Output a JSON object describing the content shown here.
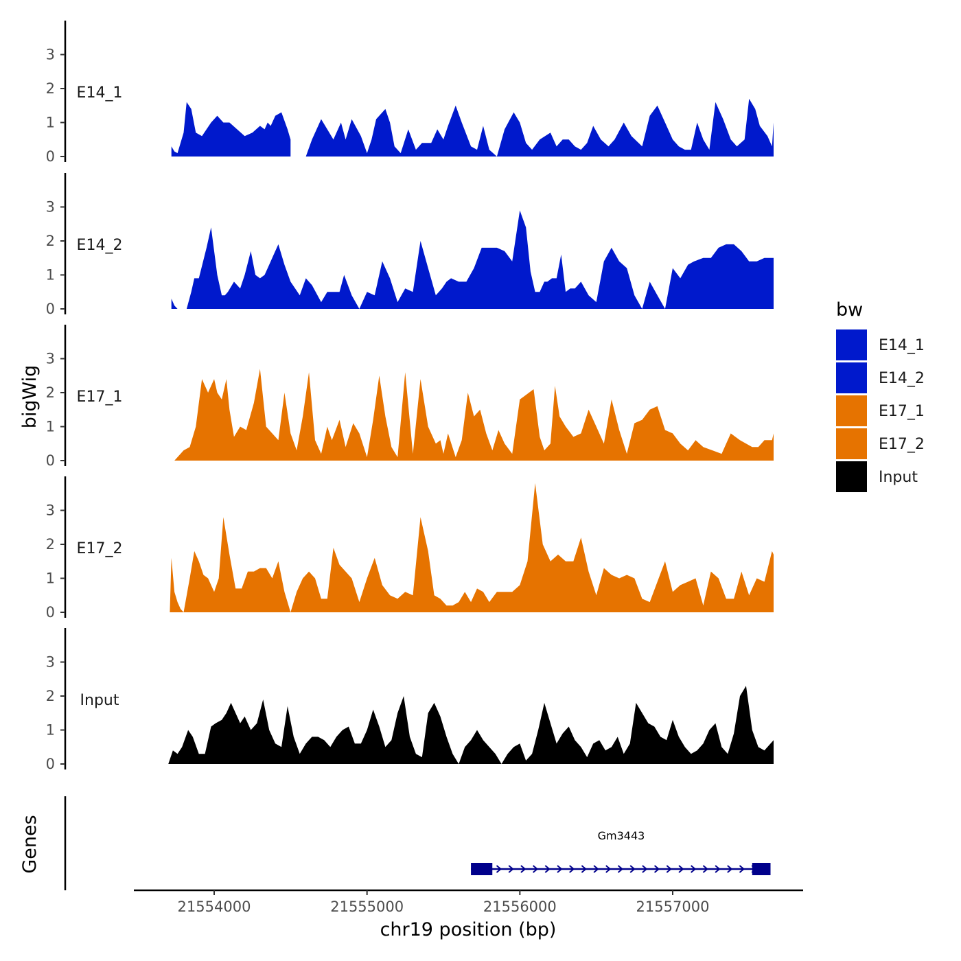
{
  "chart_data": {
    "type": "area",
    "ylabel": "bigWig",
    "xlabel": "chr19 position (bp)",
    "genes_label": "Genes",
    "y_ticks": [
      "0",
      "1",
      "2",
      "3"
    ],
    "ylim": [
      0,
      4
    ],
    "xlim": [
      21553500,
      21557900
    ],
    "x_tick_values": [
      21554000,
      21555000,
      21556000,
      21557000
    ],
    "x_tick_labels": [
      "21554000",
      "21555000",
      "21556000",
      "21557000"
    ],
    "legend": {
      "title": "bw",
      "entries": [
        {
          "label": "E14_1",
          "color": "#0019CC"
        },
        {
          "label": "E14_2",
          "color": "#0019CC"
        },
        {
          "label": "E17_1",
          "color": "#E67300"
        },
        {
          "label": "E17_2",
          "color": "#E67300"
        },
        {
          "label": "Input",
          "color": "#000000"
        }
      ]
    },
    "series": [
      {
        "name": "E14_1",
        "color": "#0019CC",
        "x": [
          21553720,
          21553740,
          21553760,
          21553800,
          21553820,
          21553850,
          21553880,
          21553920,
          21553980,
          21554020,
          21554060,
          21554100,
          21554150,
          21554200,
          21554250,
          21554300,
          21554330,
          21554350,
          21554370,
          21554400,
          21554440,
          21554480,
          21554500,
          21554530,
          21554560,
          21554600,
          21554640,
          21554700,
          21554740,
          21554780,
          21554830,
          21554860,
          21554900,
          21554960,
          21555000,
          21555030,
          21555060,
          21555120,
          21555150,
          21555180,
          21555220,
          21555270,
          21555320,
          21555360,
          21555420,
          21555460,
          21555500,
          21555530,
          21555580,
          21555620,
          21555680,
          21555720,
          21555760,
          21555800,
          21555850,
          21555900,
          21555960,
          21556000,
          21556040,
          21556080,
          21556130,
          21556200,
          21556240,
          21556280,
          21556320,
          21556360,
          21556400,
          21556440,
          21556480,
          21556530,
          21556580,
          21556620,
          21556680,
          21556730,
          21556800,
          21556850,
          21556900,
          21556950,
          21557000,
          21557040,
          21557080,
          21557120,
          21557160,
          21557200,
          21557240,
          21557280,
          21557330,
          21557380,
          21557420,
          21557470,
          21557500,
          21557540,
          21557570,
          21557620,
          21557650,
          21557660
        ],
        "y": [
          0.3,
          0.15,
          0.1,
          0.7,
          1.6,
          1.4,
          0.7,
          0.6,
          1.0,
          1.2,
          1.0,
          1.0,
          0.8,
          0.6,
          0.7,
          0.9,
          0.8,
          1.0,
          0.9,
          1.2,
          1.3,
          0.8,
          0.5,
          0.0,
          0.0,
          0.0,
          0.5,
          1.1,
          0.8,
          0.5,
          1.0,
          0.5,
          1.1,
          0.6,
          0.1,
          0.5,
          1.1,
          1.4,
          1.0,
          0.3,
          0.1,
          0.8,
          0.2,
          0.4,
          0.4,
          0.8,
          0.5,
          0.9,
          1.5,
          1.0,
          0.3,
          0.2,
          0.9,
          0.2,
          0.0,
          0.8,
          1.3,
          1.0,
          0.4,
          0.2,
          0.5,
          0.7,
          0.3,
          0.5,
          0.5,
          0.3,
          0.2,
          0.4,
          0.9,
          0.5,
          0.3,
          0.5,
          1.0,
          0.6,
          0.3,
          1.2,
          1.5,
          1.0,
          0.5,
          0.3,
          0.2,
          0.2,
          1.0,
          0.5,
          0.2,
          1.6,
          1.1,
          0.5,
          0.3,
          0.5,
          1.7,
          1.4,
          0.9,
          0.6,
          0.3,
          1.0
        ],
        "gap": [
          21554500,
          21554560
        ]
      },
      {
        "name": "E14_2",
        "color": "#0019CC",
        "x": [
          21553720,
          21553740,
          21553760,
          21553780,
          21553820,
          21553850,
          21553870,
          21553900,
          21553950,
          21553980,
          21554020,
          21554050,
          21554070,
          21554090,
          21554130,
          21554170,
          21554200,
          21554240,
          21554270,
          21554300,
          21554330,
          21554360,
          21554390,
          21554420,
          21554460,
          21554500,
          21554530,
          21554560,
          21554600,
          21554640,
          21554700,
          21554740,
          21554780,
          21554820,
          21554850,
          21554900,
          21554950,
          21555000,
          21555050,
          21555100,
          21555150,
          21555200,
          21555250,
          21555300,
          21555350,
          21555400,
          21555450,
          21555490,
          21555520,
          21555550,
          21555600,
          21555650,
          21555700,
          21555750,
          21555800,
          21555850,
          21555900,
          21555950,
          21556000,
          21556040,
          21556070,
          21556100,
          21556130,
          21556160,
          21556180,
          21556210,
          21556240,
          21556270,
          21556300,
          21556330,
          21556360,
          21556400,
          21556450,
          21556500,
          21556550,
          21556600,
          21556650,
          21556700,
          21556750,
          21556800,
          21556850,
          21556900,
          21556950,
          21557000,
          21557050,
          21557100,
          21557140,
          21557200,
          21557250,
          21557300,
          21557350,
          21557400,
          21557450,
          21557500,
          21557550,
          21557600,
          21557650,
          21557660
        ],
        "y": [
          0.3,
          0.1,
          0.0,
          0.0,
          0.0,
          0.5,
          0.9,
          0.9,
          1.8,
          2.4,
          1.0,
          0.4,
          0.4,
          0.5,
          0.8,
          0.6,
          1.0,
          1.7,
          1.0,
          0.9,
          1.0,
          1.3,
          1.6,
          1.9,
          1.3,
          0.8,
          0.6,
          0.4,
          0.9,
          0.7,
          0.2,
          0.5,
          0.5,
          0.5,
          1.0,
          0.4,
          0.0,
          0.5,
          0.4,
          1.4,
          0.9,
          0.2,
          0.6,
          0.5,
          2.0,
          1.2,
          0.4,
          0.6,
          0.8,
          0.9,
          0.8,
          0.8,
          1.2,
          1.8,
          1.8,
          1.8,
          1.7,
          1.4,
          2.9,
          2.4,
          1.1,
          0.5,
          0.5,
          0.8,
          0.8,
          0.9,
          0.9,
          1.6,
          0.5,
          0.6,
          0.6,
          0.8,
          0.4,
          0.2,
          1.4,
          1.8,
          1.4,
          1.2,
          0.4,
          0.0,
          0.8,
          0.4,
          0.0,
          1.2,
          0.9,
          1.3,
          1.4,
          1.5,
          1.5,
          1.8,
          1.9,
          1.9,
          1.7,
          1.4,
          1.4,
          1.5,
          1.5,
          1.5
        ]
      },
      {
        "name": "E17_1",
        "color": "#E67300",
        "x": [
          21553720,
          21553740,
          21553760,
          21553800,
          21553840,
          21553880,
          21553920,
          21553960,
          21554000,
          21554020,
          21554050,
          21554080,
          21554100,
          21554130,
          21554170,
          21554210,
          21554260,
          21554300,
          21554340,
          21554380,
          21554420,
          21554460,
          21554500,
          21554540,
          21554580,
          21554620,
          21554660,
          21554700,
          21554740,
          21554770,
          21554820,
          21554860,
          21554910,
          21554950,
          21555000,
          21555040,
          21555080,
          21555120,
          21555160,
          21555200,
          21555250,
          21555300,
          21555350,
          21555400,
          21555450,
          21555480,
          21555500,
          21555530,
          21555580,
          21555620,
          21555660,
          21555700,
          21555740,
          21555780,
          21555820,
          21555860,
          21555900,
          21555950,
          21556000,
          21556030,
          21556060,
          21556090,
          21556130,
          21556160,
          21556200,
          21556230,
          21556260,
          21556300,
          21556350,
          21556400,
          21556450,
          21556500,
          21556550,
          21556600,
          21556650,
          21556700,
          21556750,
          21556800,
          21556850,
          21556900,
          21556950,
          21557000,
          21557050,
          21557100,
          21557150,
          21557200,
          21557260,
          21557320,
          21557380,
          21557440,
          21557480,
          21557520,
          21557560,
          21557600,
          21557650,
          21557660
        ],
        "y": [
          0.0,
          0.0,
          0.1,
          0.3,
          0.4,
          1.0,
          2.4,
          2.0,
          2.4,
          2.0,
          1.8,
          2.4,
          1.5,
          0.7,
          1.0,
          0.9,
          1.7,
          2.7,
          1.0,
          0.8,
          0.6,
          2.0,
          0.8,
          0.3,
          1.3,
          2.6,
          0.6,
          0.2,
          1.0,
          0.6,
          1.2,
          0.4,
          1.1,
          0.8,
          0.1,
          1.2,
          2.5,
          1.3,
          0.4,
          0.1,
          2.6,
          0.2,
          2.4,
          1.0,
          0.5,
          0.6,
          0.2,
          0.8,
          0.1,
          0.6,
          2.0,
          1.3,
          1.5,
          0.8,
          0.3,
          0.9,
          0.5,
          0.2,
          1.8,
          1.9,
          2.0,
          2.1,
          0.7,
          0.3,
          0.5,
          2.2,
          1.3,
          1.0,
          0.7,
          0.8,
          1.5,
          1.0,
          0.5,
          1.8,
          0.9,
          0.2,
          1.1,
          1.2,
          1.5,
          1.6,
          0.9,
          0.8,
          0.5,
          0.3,
          0.6,
          0.4,
          0.3,
          0.2,
          0.8,
          0.6,
          0.5,
          0.4,
          0.4,
          0.6,
          0.6,
          0.8
        ]
      },
      {
        "name": "E17_2",
        "color": "#E67300",
        "x": [
          21553710,
          21553720,
          21553740,
          21553760,
          21553780,
          21553800,
          21553840,
          21553870,
          21553900,
          21553930,
          21553960,
          21554000,
          21554030,
          21554060,
          21554100,
          21554140,
          21554180,
          21554220,
          21554260,
          21554300,
          21554340,
          21554380,
          21554420,
          21554460,
          21554500,
          21554540,
          21554580,
          21554620,
          21554660,
          21554700,
          21554740,
          21554780,
          21554820,
          21554860,
          21554900,
          21554950,
          21555000,
          21555050,
          21555100,
          21555150,
          21555200,
          21555250,
          21555300,
          21555350,
          21555400,
          21555440,
          21555480,
          21555520,
          21555560,
          21555600,
          21555640,
          21555680,
          21555720,
          21555760,
          21555800,
          21555850,
          21555900,
          21555950,
          21556000,
          21556050,
          21556100,
          21556150,
          21556200,
          21556250,
          21556300,
          21556350,
          21556400,
          21556450,
          21556500,
          21556550,
          21556600,
          21556650,
          21556700,
          21556750,
          21556800,
          21556850,
          21556900,
          21556950,
          21557000,
          21557050,
          21557100,
          21557150,
          21557200,
          21557250,
          21557300,
          21557350,
          21557400,
          21557450,
          21557500,
          21557550,
          21557600,
          21557650,
          21557660
        ],
        "y": [
          0.0,
          1.6,
          0.6,
          0.3,
          0.1,
          0.0,
          1.0,
          1.8,
          1.5,
          1.1,
          1.0,
          0.6,
          1.0,
          2.8,
          1.7,
          0.7,
          0.7,
          1.2,
          1.2,
          1.3,
          1.3,
          1.0,
          1.5,
          0.6,
          0.0,
          0.6,
          1.0,
          1.2,
          1.0,
          0.4,
          0.4,
          1.9,
          1.4,
          1.2,
          1.0,
          0.3,
          1.0,
          1.6,
          0.8,
          0.5,
          0.4,
          0.6,
          0.5,
          2.8,
          1.8,
          0.5,
          0.4,
          0.2,
          0.2,
          0.3,
          0.6,
          0.3,
          0.7,
          0.6,
          0.3,
          0.6,
          0.6,
          0.6,
          0.8,
          1.5,
          3.8,
          2.0,
          1.5,
          1.7,
          1.5,
          1.5,
          2.2,
          1.2,
          0.5,
          1.3,
          1.1,
          1.0,
          1.1,
          1.0,
          0.4,
          0.3,
          0.9,
          1.5,
          0.6,
          0.8,
          0.9,
          1.0,
          0.2,
          1.2,
          1.0,
          0.4,
          0.4,
          1.2,
          0.5,
          1.0,
          0.9,
          1.8,
          1.7
        ]
      },
      {
        "name": "Input",
        "color": "#000000",
        "x": [
          21553700,
          21553730,
          21553760,
          21553790,
          21553830,
          21553860,
          21553900,
          21553940,
          21553980,
          21554010,
          21554050,
          21554080,
          21554110,
          21554140,
          21554170,
          21554200,
          21554240,
          21554280,
          21554320,
          21554360,
          21554400,
          21554440,
          21554480,
          21554520,
          21554560,
          21554600,
          21554640,
          21554680,
          21554720,
          21554760,
          21554800,
          21554840,
          21554880,
          21554920,
          21554960,
          21555000,
          21555040,
          21555080,
          21555120,
          21555160,
          21555200,
          21555240,
          21555280,
          21555320,
          21555360,
          21555400,
          21555440,
          21555480,
          21555520,
          21555560,
          21555600,
          21555640,
          21555680,
          21555720,
          21555760,
          21555800,
          21555840,
          21555880,
          21555920,
          21555960,
          21556000,
          21556040,
          21556080,
          21556120,
          21556160,
          21556200,
          21556240,
          21556280,
          21556320,
          21556360,
          21556400,
          21556440,
          21556480,
          21556520,
          21556560,
          21556600,
          21556640,
          21556680,
          21556720,
          21556760,
          21556800,
          21556840,
          21556880,
          21556920,
          21556960,
          21557000,
          21557040,
          21557080,
          21557120,
          21557160,
          21557200,
          21557240,
          21557280,
          21557320,
          21557360,
          21557400,
          21557440,
          21557480,
          21557520,
          21557560,
          21557600,
          21557640,
          21557660
        ],
        "y": [
          0.0,
          0.4,
          0.3,
          0.5,
          1.0,
          0.8,
          0.3,
          0.3,
          1.1,
          1.2,
          1.3,
          1.5,
          1.8,
          1.5,
          1.2,
          1.4,
          1.0,
          1.2,
          1.9,
          1.0,
          0.6,
          0.5,
          1.7,
          0.8,
          0.3,
          0.6,
          0.8,
          0.8,
          0.7,
          0.5,
          0.8,
          1.0,
          1.1,
          0.6,
          0.6,
          1.0,
          1.6,
          1.1,
          0.5,
          0.7,
          1.5,
          2.0,
          0.8,
          0.3,
          0.2,
          1.5,
          1.8,
          1.4,
          0.8,
          0.3,
          0.0,
          0.5,
          0.7,
          1.0,
          0.7,
          0.5,
          0.3,
          0.0,
          0.3,
          0.5,
          0.6,
          0.1,
          0.3,
          1.0,
          1.8,
          1.2,
          0.6,
          0.9,
          1.1,
          0.7,
          0.5,
          0.2,
          0.6,
          0.7,
          0.4,
          0.5,
          0.8,
          0.3,
          0.6,
          1.8,
          1.5,
          1.2,
          1.1,
          0.8,
          0.7,
          1.3,
          0.8,
          0.5,
          0.3,
          0.4,
          0.6,
          1.0,
          1.2,
          0.5,
          0.3,
          0.9,
          2.0,
          2.3,
          1.0,
          0.5,
          0.4,
          0.6,
          0.7
        ]
      }
    ],
    "genes": [
      {
        "name": "Gm3443",
        "start": 21555680,
        "end": 21557640,
        "strand": "+",
        "color": "#00008B",
        "exons": [
          [
            21555680,
            21555820
          ],
          [
            21557520,
            21557640
          ]
        ]
      }
    ]
  }
}
